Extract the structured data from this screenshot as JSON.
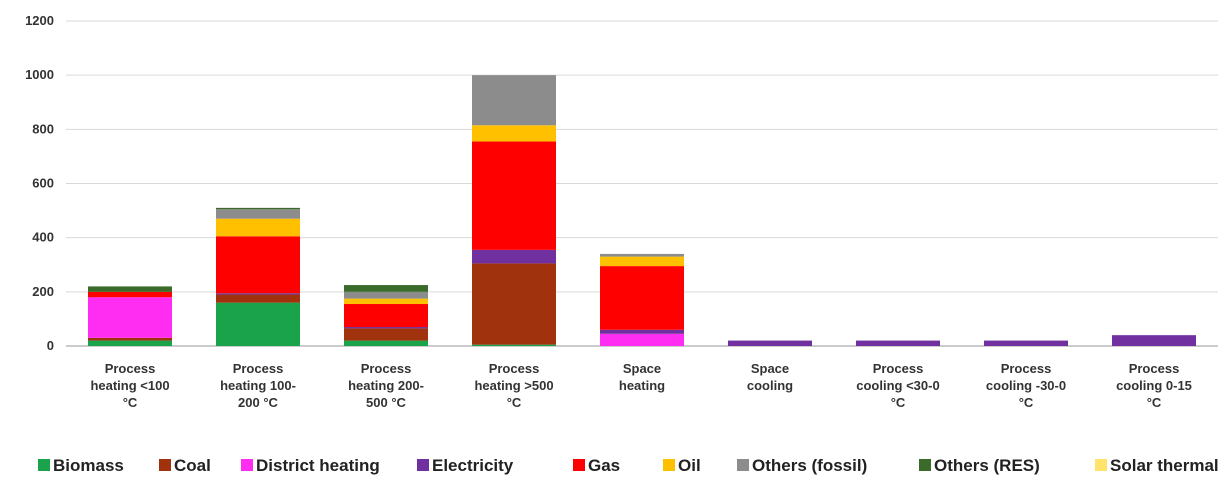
{
  "chart_data": {
    "type": "bar",
    "stacked": true,
    "categories": [
      [
        "Process",
        "heating <100",
        "°C"
      ],
      [
        "Process",
        "heating 100-",
        "200 °C"
      ],
      [
        "Process",
        "heating 200-",
        "500 °C"
      ],
      [
        "Process",
        "heating >500",
        "°C"
      ],
      [
        "Space",
        "heating"
      ],
      [
        "Space",
        "cooling"
      ],
      [
        "Process",
        "cooling <30-0",
        "°C"
      ],
      [
        "Process",
        "cooling -30-0",
        "°C"
      ],
      [
        "Process",
        "cooling 0-15",
        "°C"
      ]
    ],
    "series": [
      {
        "name": "Biomass",
        "color": "#1aa34a",
        "values": [
          20,
          160,
          20,
          5,
          0,
          0,
          0,
          0,
          0
        ]
      },
      {
        "name": "Coal",
        "color": "#a0330e",
        "values": [
          10,
          30,
          45,
          300,
          0,
          0,
          0,
          0,
          0
        ]
      },
      {
        "name": "District heating",
        "color": "#ff2cf2",
        "values": [
          150,
          0,
          0,
          0,
          45,
          0,
          0,
          0,
          0
        ]
      },
      {
        "name": "Electricity",
        "color": "#7030a0",
        "values": [
          0,
          5,
          5,
          50,
          15,
          20,
          20,
          20,
          40
        ]
      },
      {
        "name": "Gas",
        "color": "#ff0000",
        "values": [
          20,
          210,
          85,
          400,
          235,
          0,
          0,
          0,
          0
        ]
      },
      {
        "name": "Oil",
        "color": "#ffc000",
        "values": [
          0,
          65,
          20,
          60,
          35,
          0,
          0,
          0,
          0
        ]
      },
      {
        "name": "Others (fossil)",
        "color": "#8c8c8c",
        "values": [
          0,
          35,
          25,
          185,
          10,
          0,
          0,
          0,
          0
        ]
      },
      {
        "name": "Others (RES)",
        "color": "#3b6b2a",
        "values": [
          20,
          5,
          25,
          0,
          0,
          0,
          0,
          0,
          0
        ]
      },
      {
        "name": "Solar thermal",
        "color": "#ffe36b",
        "values": [
          0,
          0,
          0,
          0,
          0,
          0,
          0,
          0,
          0
        ]
      }
    ],
    "ylim": [
      0,
      1200
    ],
    "yticks": [
      "0",
      "200",
      "400",
      "600",
      "800",
      "1000",
      "1200"
    ],
    "grid": true,
    "legend_position": "bottom",
    "title": "",
    "xlabel": "",
    "ylabel": ""
  }
}
